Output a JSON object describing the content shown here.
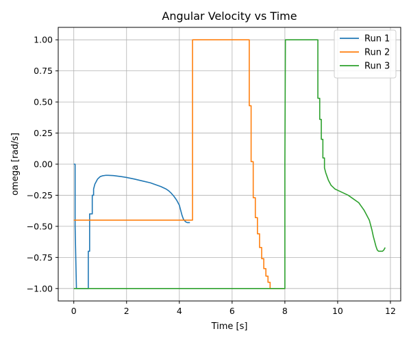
{
  "chart_data": {
    "type": "line",
    "title": "Angular Velocity vs Time",
    "xlabel": "Time [s]",
    "ylabel": "omega [rad/s]",
    "xlim": [
      -0.59,
      12.39
    ],
    "ylim": [
      -1.1,
      1.1
    ],
    "xticks": [
      0,
      2,
      4,
      6,
      8,
      10,
      12
    ],
    "xtick_labels": [
      "0",
      "2",
      "4",
      "6",
      "8",
      "10",
      "12"
    ],
    "yticks": [
      -1.0,
      -0.75,
      -0.5,
      -0.25,
      0.0,
      0.25,
      0.5,
      0.75,
      1.0
    ],
    "ytick_labels": [
      "−1.00",
      "−0.75",
      "−0.50",
      "−0.25",
      "0.00",
      "0.25",
      "0.50",
      "0.75",
      "1.00"
    ],
    "grid": true,
    "legend_position": "top-right",
    "series": [
      {
        "name": "Run 1",
        "color": "#1f77b4",
        "x": [
          0.0,
          0.05,
          0.05,
          0.1,
          0.1,
          0.55,
          0.55,
          0.6,
          0.6,
          0.7,
          0.7,
          0.75,
          0.75,
          0.8,
          0.85,
          0.9,
          0.95,
          1.0,
          1.1,
          1.2,
          1.3,
          1.5,
          1.8,
          2.0,
          2.3,
          2.6,
          2.9,
          3.1,
          3.3,
          3.5,
          3.6,
          3.7,
          3.8,
          3.9,
          4.0,
          4.05,
          4.1,
          4.15,
          4.2,
          4.25,
          4.3,
          4.35,
          4.4
        ],
        "y": [
          0.0,
          0.0,
          -0.5,
          -1.0,
          -1.0,
          -1.0,
          -0.7,
          -0.7,
          -0.4,
          -0.4,
          -0.25,
          -0.25,
          -0.2,
          -0.16,
          -0.14,
          -0.12,
          -0.11,
          -0.1,
          -0.093,
          -0.09,
          -0.09,
          -0.092,
          -0.1,
          -0.107,
          -0.12,
          -0.135,
          -0.15,
          -0.165,
          -0.18,
          -0.2,
          -0.215,
          -0.235,
          -0.26,
          -0.29,
          -0.33,
          -0.37,
          -0.41,
          -0.44,
          -0.455,
          -0.465,
          -0.47,
          -0.47,
          -0.47
        ]
      },
      {
        "name": "Run 2",
        "color": "#ff7f0e",
        "x": [
          0.0,
          4.5,
          4.5,
          6.65,
          6.65,
          6.72,
          6.72,
          6.8,
          6.8,
          6.88,
          6.88,
          6.96,
          6.96,
          7.04,
          7.04,
          7.12,
          7.12,
          7.2,
          7.2,
          7.28,
          7.28,
          7.36,
          7.36,
          7.44,
          7.44,
          7.5,
          7.5,
          8.0
        ],
        "y": [
          -0.45,
          -0.45,
          1.0,
          1.0,
          0.47,
          0.47,
          0.02,
          0.02,
          -0.27,
          -0.27,
          -0.43,
          -0.43,
          -0.56,
          -0.56,
          -0.67,
          -0.67,
          -0.76,
          -0.76,
          -0.84,
          -0.84,
          -0.9,
          -0.9,
          -0.95,
          -0.95,
          -1.0,
          -1.0,
          -1.0,
          -1.0
        ]
      },
      {
        "name": "Run 3",
        "color": "#2ca02c",
        "x": [
          0.0,
          8.0,
          8.0,
          8.02,
          9.25,
          9.25,
          9.32,
          9.32,
          9.38,
          9.38,
          9.44,
          9.44,
          9.5,
          9.5,
          9.55,
          9.6,
          9.65,
          9.7,
          9.75,
          9.8,
          9.85,
          9.9,
          10.0,
          10.2,
          10.4,
          10.6,
          10.8,
          10.9,
          11.0,
          11.1,
          11.2,
          11.25,
          11.3,
          11.35,
          11.4,
          11.45,
          11.5,
          11.55,
          11.6,
          11.65,
          11.7,
          11.75,
          11.8
        ],
        "y": [
          -1.0,
          -1.0,
          0.0,
          1.0,
          1.0,
          0.53,
          0.53,
          0.36,
          0.36,
          0.2,
          0.2,
          0.05,
          0.05,
          -0.03,
          -0.07,
          -0.1,
          -0.13,
          -0.15,
          -0.17,
          -0.18,
          -0.19,
          -0.2,
          -0.21,
          -0.23,
          -0.25,
          -0.28,
          -0.31,
          -0.34,
          -0.37,
          -0.41,
          -0.45,
          -0.49,
          -0.53,
          -0.58,
          -0.62,
          -0.66,
          -0.69,
          -0.7,
          -0.7,
          -0.7,
          -0.7,
          -0.69,
          -0.67
        ]
      }
    ]
  }
}
